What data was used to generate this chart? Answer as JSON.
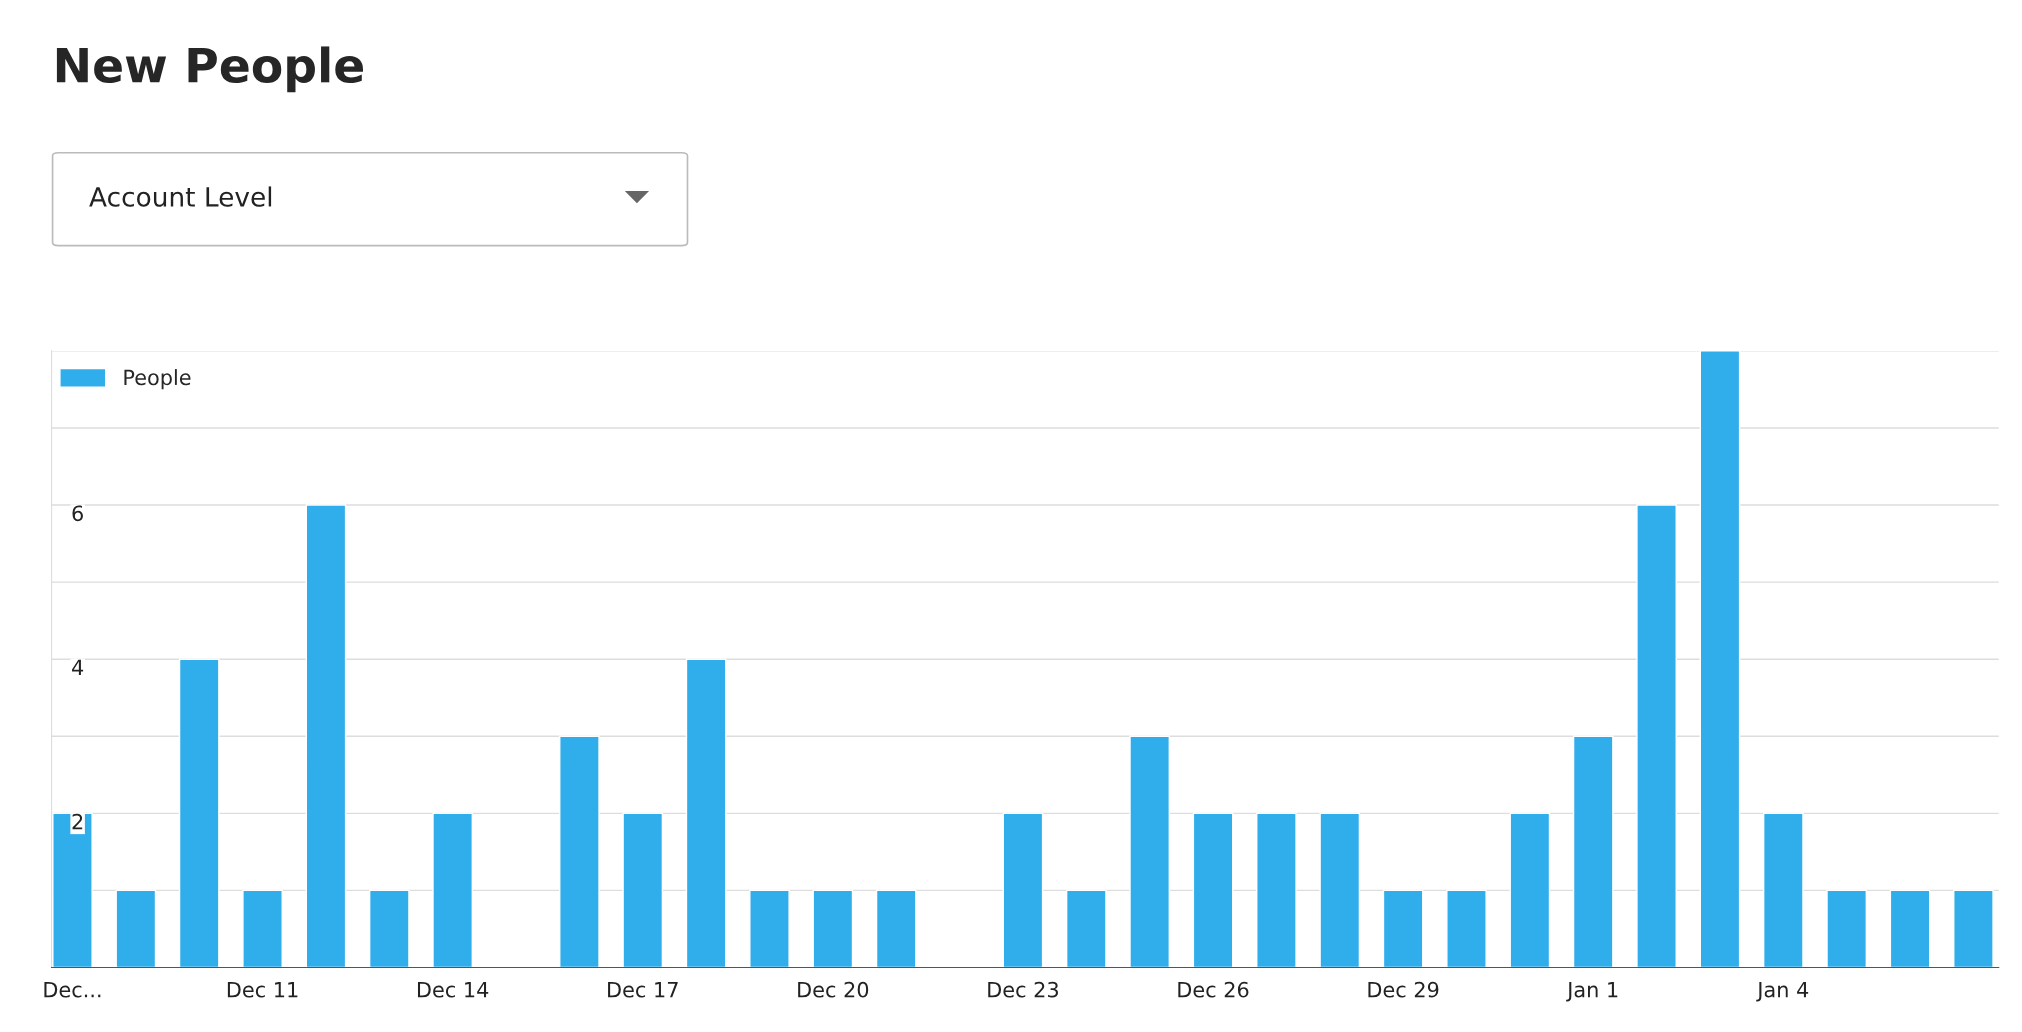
{
  "chart_data": {
    "type": "bar",
    "title": "New People",
    "annotations": [
      "Account Level"
    ],
    "categories": [
      "Dec...",
      null,
      null,
      "Dec 11",
      null,
      null,
      "Dec 14",
      null,
      null,
      "Dec 17",
      null,
      null,
      "Dec 20",
      null,
      null,
      "Dec 23",
      null,
      null,
      "Dec 26",
      null,
      null,
      "Dec 29",
      null,
      null,
      "Jan 1",
      null,
      null,
      "Jan 4",
      null,
      null,
      null
    ],
    "series": [
      {
        "name": "People",
        "color": "#30aeeb",
        "values": [
          2,
          1,
          4,
          1,
          6,
          1,
          2,
          0,
          3,
          2,
          4,
          1,
          1,
          1,
          0,
          2,
          1,
          3,
          2,
          2,
          2,
          1,
          1,
          2,
          3,
          6,
          8,
          2,
          1,
          1,
          1
        ]
      }
    ],
    "ylim": [
      0,
      8
    ],
    "yticks": [
      {
        "value": 1,
        "label": null
      },
      2,
      {
        "value": 3,
        "label": null
      },
      4,
      {
        "value": 5,
        "label": null
      },
      6,
      {
        "value": 7,
        "label": null
      },
      {
        "value": 8,
        "label": null
      }
    ],
    "grid": "y",
    "legend": "top left"
  }
}
